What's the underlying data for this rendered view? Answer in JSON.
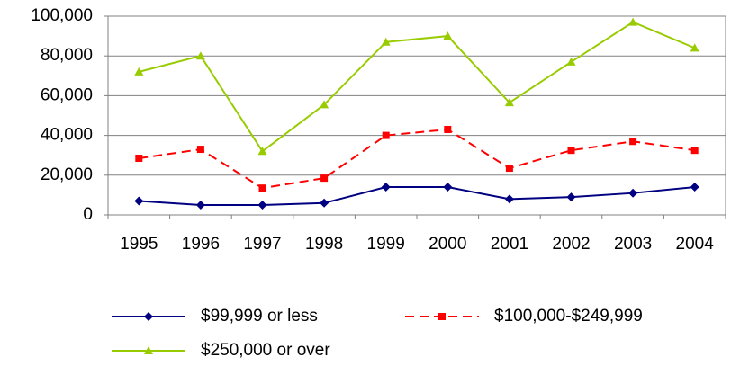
{
  "chart_data": {
    "type": "line",
    "categories": [
      "1995",
      "1996",
      "1997",
      "1998",
      "1999",
      "2000",
      "2001",
      "2002",
      "2003",
      "2004"
    ],
    "series": [
      {
        "name": "$99,999 or less",
        "color": "#000080",
        "marker": "diamond",
        "dash": false,
        "values": [
          7000,
          5000,
          5000,
          6000,
          14000,
          14000,
          8000,
          9000,
          11000,
          14000
        ]
      },
      {
        "name": "$100,000-$249,999",
        "color": "#ff0000",
        "marker": "square",
        "dash": true,
        "values": [
          28500,
          33000,
          13500,
          18500,
          40000,
          43000,
          23500,
          32500,
          37000,
          32500
        ]
      },
      {
        "name": "$250,000 or over",
        "color": "#99cc00",
        "marker": "triangle",
        "dash": false,
        "values": [
          72000,
          80000,
          32000,
          55500,
          87000,
          90000,
          56500,
          77000,
          97000,
          84000
        ]
      }
    ],
    "ylim": [
      0,
      100000
    ],
    "yticks": [
      0,
      {
        "value": 20000,
        "label": "20,000"
      },
      {
        "value": 40000,
        "label": "40,000"
      },
      {
        "value": 60000,
        "label": "60,000"
      },
      {
        "value": 80000,
        "label": "80,000"
      },
      {
        "value": 100000,
        "label": "100,000"
      }
    ],
    "grid": true,
    "legend": "bottom"
  }
}
